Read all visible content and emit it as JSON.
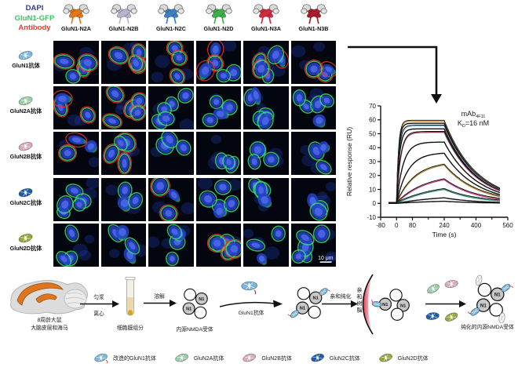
{
  "stain_legend": {
    "dapi": "DAPI",
    "dapi_color": "#2e3b9e",
    "gfp": "GluN1-GFP",
    "gfp_color": "#3fbf5f",
    "antibody": "Antibody",
    "antibody_color": "#e8402e"
  },
  "columns": [
    {
      "label": "GluN1-N2A",
      "color": "#e2761b"
    },
    {
      "label": "GluN1-N2B",
      "color": "#b9b3d0"
    },
    {
      "label": "GluN1-N2C",
      "color": "#3b7fc4"
    },
    {
      "label": "GluN1-N2D",
      "color": "#3faf4e"
    },
    {
      "label": "GluN1-N3A",
      "color": "#cf2b3d"
    },
    {
      "label": "GluN1-N3B",
      "color": "#a81c2c"
    }
  ],
  "rows": [
    {
      "label": "GluN1抗体",
      "color": "#7db8dc"
    },
    {
      "label": "GluN2A抗体",
      "color": "#9cccaa"
    },
    {
      "label": "GluN2B抗体",
      "color": "#d8aabb"
    },
    {
      "label": "GluN2C抗体",
      "color": "#1f5ca8"
    },
    {
      "label": "GluN2D抗体",
      "color": "#94a83e"
    }
  ],
  "micrographs": {
    "rows": 5,
    "cols": 6,
    "bg": "#04060f",
    "nucleus_color": "#2443c6",
    "membrane_color": "#35e06c",
    "antibody_color": "#f03226",
    "red_map": [
      [
        0,
        1,
        2,
        3,
        4,
        5
      ],
      [
        0,
        1
      ],
      [
        0,
        1
      ],
      [
        2
      ],
      [
        3
      ]
    ],
    "scale_bar": "10 μm"
  },
  "chart_data": {
    "type": "line",
    "title": "",
    "xlabel": "Time (s)",
    "ylabel": "Relative response (RU)",
    "xlim": [
      -80,
      560
    ],
    "ylim": [
      -10,
      70
    ],
    "xticks_labeled": [
      -80,
      0,
      80,
      240,
      400,
      560
    ],
    "xticks_minor": [
      160,
      320,
      480
    ],
    "yticks": [
      -10,
      0,
      10,
      20,
      30,
      40,
      50,
      60,
      70
    ],
    "grid": false,
    "annotation": {
      "line1_main": "mAb",
      "line1_sub": "4F11",
      "line2_pre": "K",
      "line2_sub": "D",
      "line2_post": "=16 nM"
    },
    "baseline_start": -40,
    "association_start": 0,
    "association_end": 240,
    "curve_end": 520,
    "dissociation_rate": 0.0062,
    "series": [
      {
        "response_240": 59,
        "k_obs": 0.1,
        "color": "#c99a4d"
      },
      {
        "response_240": 57.5,
        "k_obs": 0.095,
        "color": "#111111"
      },
      {
        "response_240": 55.5,
        "k_obs": 0.08,
        "color": "#92c4e4"
      },
      {
        "response_240": 53.5,
        "k_obs": 0.07,
        "color": "#111111"
      },
      {
        "response_240": 51,
        "k_obs": 0.05,
        "color": "#8f3a5e"
      },
      {
        "response_240": 44,
        "k_obs": 0.03,
        "color": "#111111"
      },
      {
        "response_240": 36,
        "k_obs": 0.018,
        "color": "#111111"
      },
      {
        "response_240": 27.5,
        "k_obs": 0.011,
        "color": "#a8862e"
      },
      {
        "response_240": 17,
        "k_obs": 0.007,
        "color": "#bf3f7e"
      },
      {
        "response_240": 10,
        "k_obs": 0.005,
        "color": "#2f8f6e"
      },
      {
        "response_240": 4,
        "k_obs": 0.0045,
        "color": "#111111"
      },
      {
        "response_240": 1.5,
        "k_obs": 0.004,
        "color": "#111111"
      }
    ]
  },
  "workflow": {
    "source_label_line1": "8周龄大鼠",
    "source_label_line2": "大脑皮层和海马",
    "arrow1_top": "匀浆",
    "arrow1_bottom": "离心",
    "tube_label": "细胞膜组分",
    "arrow2_top": "溶解",
    "receptor_label": "内源NMDA受体",
    "arrow3_label": "GluN1抗体",
    "arrow4_label": "亲和纯化",
    "resin_label": "亲和树脂",
    "final_label": "纯化的内源NMDA受体",
    "subunit_label": "N1"
  },
  "legend": {
    "items": [
      {
        "label": "改造的GluN1抗体",
        "color": "#7db8dc",
        "tail": true
      },
      {
        "label": "GluN2A抗体",
        "color": "#9cccaa"
      },
      {
        "label": "GluN2B抗体",
        "color": "#d8aabb"
      },
      {
        "label": "GluN2C抗体",
        "color": "#1f5ca8"
      },
      {
        "label": "GluN2D抗体",
        "color": "#94a83e"
      }
    ]
  }
}
